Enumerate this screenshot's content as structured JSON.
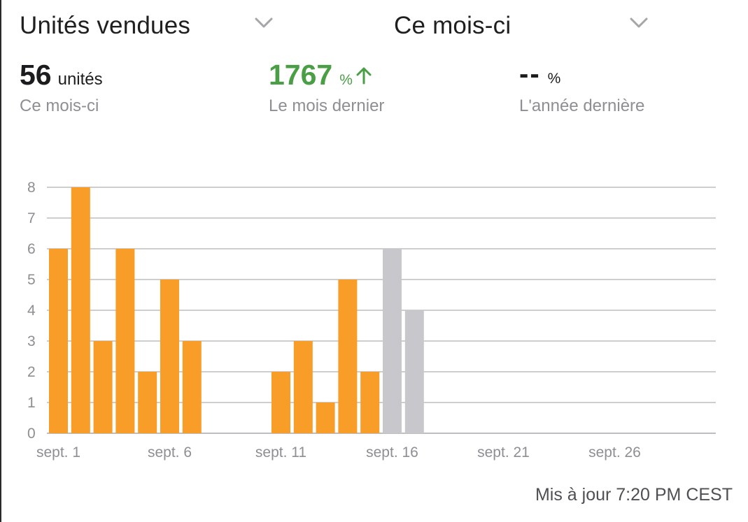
{
  "header": {
    "metric_select": "Unités vendues",
    "period_select": "Ce mois-ci"
  },
  "stats": {
    "current": {
      "value": "56",
      "unit": "unités",
      "label": "Ce mois-ci"
    },
    "last_month": {
      "value": "1767",
      "unit": "%",
      "label": "Le mois dernier",
      "trend": "up"
    },
    "last_year": {
      "value": "--",
      "unit": "%",
      "label": "L'année dernière"
    }
  },
  "colors": {
    "actual": "#f89d27",
    "forecast": "#c7c7cc",
    "positive": "#4a9e45",
    "grid": "#bdbdc2"
  },
  "chart_data": {
    "type": "bar",
    "x_ticks": [
      "sept. 1",
      "sept. 6",
      "sept. 11",
      "sept. 16",
      "sept. 21",
      "sept. 26"
    ],
    "y_ticks": [
      "0",
      "1",
      "2",
      "3",
      "4",
      "5",
      "6",
      "7",
      "8"
    ],
    "ylim": [
      0,
      8
    ],
    "days": 30,
    "grid": true,
    "series": [
      {
        "values": [
          {
            "day": 1,
            "value": 6
          },
          {
            "day": 2,
            "value": 8
          },
          {
            "day": 3,
            "value": 3
          },
          {
            "day": 4,
            "value": 6
          },
          {
            "day": 5,
            "value": 2
          },
          {
            "day": 6,
            "value": 5
          },
          {
            "day": 7,
            "value": 3
          },
          {
            "day": 11,
            "value": 2
          },
          {
            "day": 12,
            "value": 3
          },
          {
            "day": 13,
            "value": 1
          },
          {
            "day": 14,
            "value": 5
          },
          {
            "day": 15,
            "value": 2
          }
        ]
      },
      {
        "values": [
          {
            "day": 16,
            "value": 6
          },
          {
            "day": 17,
            "value": 4
          }
        ]
      }
    ]
  },
  "footer": {
    "updated": "Mis à jour 7:20 PM CEST"
  }
}
